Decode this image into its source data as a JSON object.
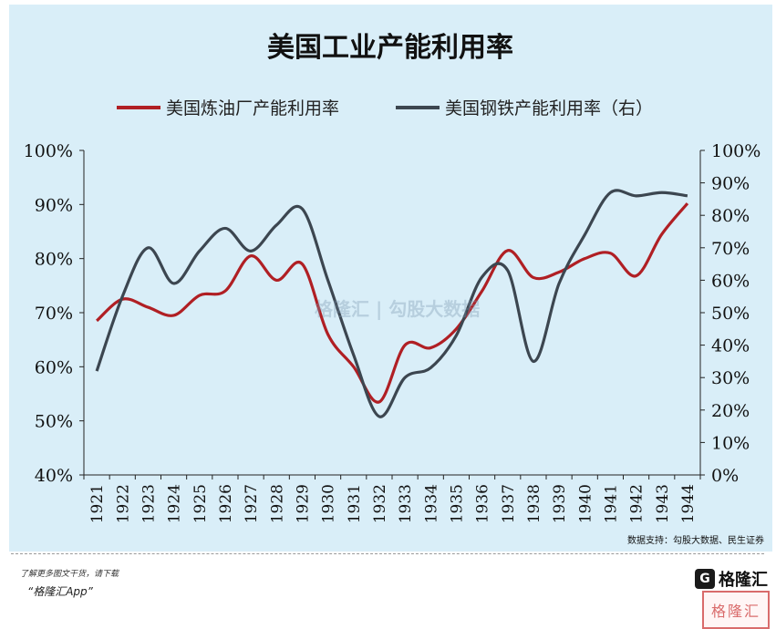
{
  "chart_data": {
    "type": "line",
    "title": "美国工业产能利用率",
    "x": [
      "1921",
      "1922",
      "1923",
      "1924",
      "1925",
      "1926",
      "1927",
      "1928",
      "1929",
      "1930",
      "1931",
      "1932",
      "1933",
      "1934",
      "1935",
      "1936",
      "1937",
      "1938",
      "1939",
      "1940",
      "1941",
      "1942",
      "1943",
      "1944"
    ],
    "ylim_left": [
      40,
      100
    ],
    "ylim_right": [
      0,
      100
    ],
    "yticks_left": [
      "40%",
      "50%",
      "60%",
      "70%",
      "80%",
      "90%",
      "100%"
    ],
    "yticks_right": [
      "0%",
      "10%",
      "20%",
      "30%",
      "40%",
      "50%",
      "60%",
      "70%",
      "80%",
      "90%",
      "100%"
    ],
    "series": [
      {
        "name": "美国炼油厂产能利用率",
        "axis": "left",
        "color": "#b01f24",
        "values": [
          68.5,
          72.5,
          71,
          69.5,
          73.2,
          74,
          80.5,
          76,
          79,
          66,
          60,
          53.5,
          64,
          63.5,
          67,
          74,
          81.5,
          76.5,
          77.5,
          80,
          81,
          76.8,
          84.5,
          90.2
        ]
      },
      {
        "name": "美国钢铁产能利用率（右）",
        "axis": "right",
        "color": "#3c4650",
        "values": [
          32,
          55,
          70,
          59,
          69,
          76,
          69,
          77,
          82,
          60,
          37,
          18,
          30,
          33,
          43,
          61,
          63,
          35,
          59,
          74,
          87,
          86,
          87,
          86
        ]
      }
    ],
    "legend_position": "top",
    "grid": false
  },
  "source": "数据支持：勾股大数据、民生证券",
  "watermark": "格隆汇 | 勾股大数据",
  "footer": {
    "note": "了解更多图文干货，请下载",
    "app": "“格隆汇App”"
  },
  "brand": {
    "badge": "G",
    "name": "格隆汇",
    "seal": "格隆汇"
  }
}
